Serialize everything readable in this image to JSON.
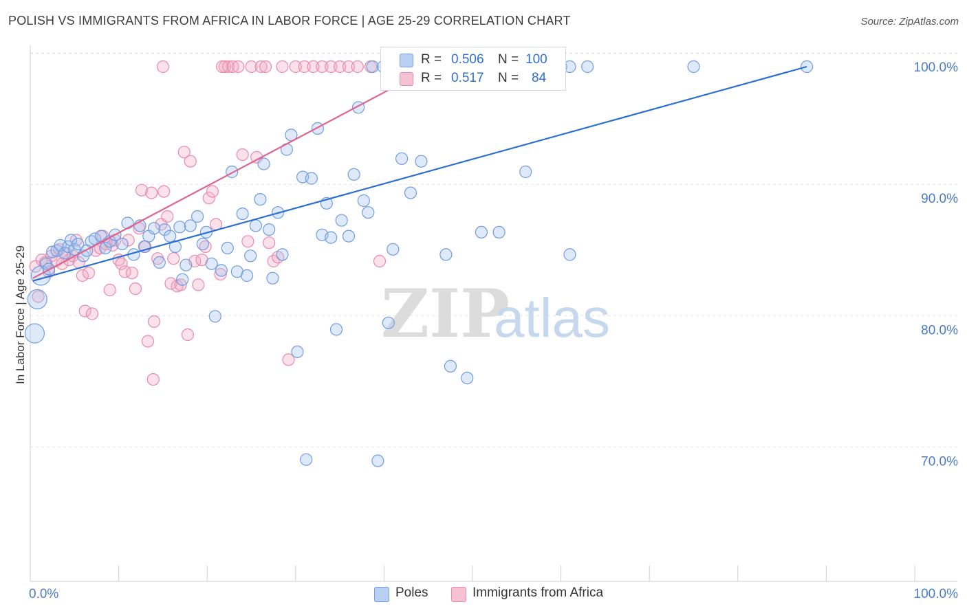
{
  "title": "POLISH VS IMMIGRANTS FROM AFRICA IN LABOR FORCE | AGE 25-29 CORRELATION CHART",
  "source": "Source: ZipAtlas.com",
  "legend": {
    "r_label": "R =",
    "n_label": "N =",
    "series": [
      {
        "name": "Poles",
        "r": "0.506",
        "n": "100",
        "color": "#6f9be0",
        "fill": "#b9d0f3"
      },
      {
        "name": "Immigrants from Africa",
        "r": "0.517",
        "n": "84",
        "color": "#e88aab",
        "fill": "#f6c2d3"
      }
    ]
  },
  "watermark": {
    "zip": "ZIP",
    "atlas": "atlas"
  },
  "chart_data": {
    "type": "scatter",
    "title": "POLISH VS IMMIGRANTS FROM AFRICA IN LABOR FORCE | AGE 25-29 CORRELATION CHART",
    "xlabel": "",
    "ylabel": "In Labor Force | Age 25-29",
    "xlim": [
      0,
      100
    ],
    "ylim": [
      60,
      101.5
    ],
    "x_tick_labels": [
      "0.0%",
      "100.0%"
    ],
    "y_ticks": [
      70,
      80,
      90,
      100
    ],
    "y_tick_labels": [
      "70.0%",
      "80.0%",
      "90.0%",
      "100.0%"
    ],
    "grid": true,
    "series": [
      {
        "name": "Poles",
        "color": "#4f86d8",
        "trend": {
          "x0": 0.3,
          "y0": 83.7,
          "x1": 87.8,
          "y1": 100.0,
          "color": "#2b6fd0"
        },
        "points": [
          [
            0.5,
            79.7
          ],
          [
            0.8,
            82.3
          ],
          [
            1.2,
            84.1
          ],
          [
            1.8,
            85.0
          ],
          [
            2.1,
            84.6
          ],
          [
            2.5,
            85.9
          ],
          [
            3.0,
            86.0
          ],
          [
            3.4,
            86.4
          ],
          [
            3.9,
            85.8
          ],
          [
            4.3,
            86.3
          ],
          [
            4.6,
            86.8
          ],
          [
            5.0,
            86.1
          ],
          [
            5.4,
            86.5
          ],
          [
            6.0,
            85.6
          ],
          [
            6.4,
            86.0
          ],
          [
            6.9,
            86.7
          ],
          [
            7.3,
            86.9
          ],
          [
            8.0,
            87.1
          ],
          [
            8.5,
            86.2
          ],
          [
            9.0,
            86.7
          ],
          [
            9.6,
            87.2
          ],
          [
            10.4,
            86.5
          ],
          [
            11.0,
            88.1
          ],
          [
            11.7,
            85.7
          ],
          [
            12.4,
            87.9
          ],
          [
            12.9,
            86.3
          ],
          [
            13.4,
            87.1
          ],
          [
            14.0,
            87.7
          ],
          [
            14.6,
            85.1
          ],
          [
            15.2,
            87.6
          ],
          [
            15.8,
            87.1
          ],
          [
            16.4,
            86.3
          ],
          [
            16.9,
            87.8
          ],
          [
            17.2,
            83.8
          ],
          [
            17.6,
            84.9
          ],
          [
            18.1,
            87.9
          ],
          [
            18.9,
            88.6
          ],
          [
            19.5,
            86.5
          ],
          [
            19.9,
            87.4
          ],
          [
            20.5,
            85.0
          ],
          [
            20.9,
            81.0
          ],
          [
            21.6,
            84.5
          ],
          [
            22.3,
            86.2
          ],
          [
            22.8,
            92.0
          ],
          [
            23.4,
            84.4
          ],
          [
            24.0,
            88.8
          ],
          [
            24.5,
            84.1
          ],
          [
            24.9,
            85.6
          ],
          [
            25.5,
            87.9
          ],
          [
            26.0,
            89.9
          ],
          [
            26.4,
            92.6
          ],
          [
            27.0,
            87.6
          ],
          [
            27.4,
            83.9
          ],
          [
            28.0,
            88.9
          ],
          [
            28.5,
            85.7
          ],
          [
            29.0,
            93.7
          ],
          [
            29.5,
            94.8
          ],
          [
            30.2,
            78.3
          ],
          [
            30.8,
            91.6
          ],
          [
            31.2,
            70.1
          ],
          [
            31.8,
            91.5
          ],
          [
            32.5,
            95.3
          ],
          [
            33.0,
            87.2
          ],
          [
            33.5,
            89.6
          ],
          [
            34.0,
            87.0
          ],
          [
            34.6,
            80.0
          ],
          [
            35.2,
            88.3
          ],
          [
            36.0,
            87.1
          ],
          [
            36.6,
            91.8
          ],
          [
            37.1,
            96.9
          ],
          [
            37.7,
            89.8
          ],
          [
            38.2,
            88.9
          ],
          [
            38.7,
            100.0
          ],
          [
            39.3,
            70.0
          ],
          [
            39.9,
            100.0
          ],
          [
            40.5,
            80.5
          ],
          [
            41.0,
            86.1
          ],
          [
            42.0,
            93.0
          ],
          [
            43.0,
            90.4
          ],
          [
            43.5,
            100.0
          ],
          [
            44.2,
            92.8
          ],
          [
            45.0,
            100.0
          ],
          [
            46.0,
            100.0
          ],
          [
            47.0,
            85.7
          ],
          [
            47.5,
            77.2
          ],
          [
            48.0,
            100.0
          ],
          [
            50.0,
            100.0
          ],
          [
            51.0,
            87.4
          ],
          [
            52.0,
            100.0
          ],
          [
            53.0,
            87.4
          ],
          [
            55.0,
            100.0
          ],
          [
            56.0,
            92.0
          ],
          [
            57.0,
            100.0
          ],
          [
            60.0,
            100.0
          ],
          [
            61.0,
            100.0
          ],
          [
            63.0,
            100.0
          ],
          [
            75.0,
            100.0
          ],
          [
            87.8,
            100.0
          ],
          [
            61.0,
            85.7
          ],
          [
            49.4,
            76.3
          ]
        ]
      },
      {
        "name": "Immigrants from Africa",
        "color": "#e77fa4",
        "trend": {
          "x0": 0.3,
          "y0": 83.9,
          "x1": 45.5,
          "y1": 100.0,
          "color": "#e0638f"
        },
        "points": [
          [
            0.6,
            84.8
          ],
          [
            0.9,
            82.5
          ],
          [
            1.3,
            85.3
          ],
          [
            1.7,
            85.1
          ],
          [
            2.1,
            84.4
          ],
          [
            2.4,
            85.6
          ],
          [
            2.9,
            85.2
          ],
          [
            3.3,
            86.1
          ],
          [
            3.6,
            85.0
          ],
          [
            4.1,
            85.8
          ],
          [
            4.4,
            85.3
          ],
          [
            4.8,
            85.6
          ],
          [
            5.2,
            86.8
          ],
          [
            5.5,
            85.1
          ],
          [
            5.9,
            84.1
          ],
          [
            6.2,
            81.4
          ],
          [
            6.6,
            84.3
          ],
          [
            7.0,
            81.2
          ],
          [
            7.4,
            86.0
          ],
          [
            7.9,
            86.2
          ],
          [
            8.2,
            87.1
          ],
          [
            8.6,
            86.5
          ],
          [
            9.0,
            83.0
          ],
          [
            9.3,
            86.4
          ],
          [
            9.6,
            86.8
          ],
          [
            10.0,
            85.3
          ],
          [
            10.3,
            85.0
          ],
          [
            10.7,
            84.4
          ],
          [
            11.1,
            86.8
          ],
          [
            11.5,
            84.3
          ],
          [
            11.9,
            83.1
          ],
          [
            12.3,
            87.7
          ],
          [
            12.6,
            90.6
          ],
          [
            13.0,
            86.3
          ],
          [
            13.3,
            79.1
          ],
          [
            13.7,
            90.4
          ],
          [
            14.0,
            80.6
          ],
          [
            14.4,
            85.4
          ],
          [
            14.8,
            88.0
          ],
          [
            15.1,
            90.5
          ],
          [
            15.5,
            88.6
          ],
          [
            15.9,
            83.5
          ],
          [
            16.2,
            85.4
          ],
          [
            16.6,
            83.3
          ],
          [
            17.0,
            83.4
          ],
          [
            17.4,
            93.5
          ],
          [
            17.8,
            79.6
          ],
          [
            18.1,
            92.8
          ],
          [
            18.6,
            85.2
          ],
          [
            19.0,
            83.4
          ],
          [
            19.4,
            85.3
          ],
          [
            19.8,
            86.3
          ],
          [
            20.2,
            90.0
          ],
          [
            20.6,
            90.5
          ],
          [
            21.0,
            88.0
          ],
          [
            21.5,
            84.2
          ],
          [
            22.0,
            100.0
          ],
          [
            22.4,
            100.0
          ],
          [
            22.9,
            100.0
          ],
          [
            23.5,
            100.0
          ],
          [
            24.0,
            93.3
          ],
          [
            24.6,
            86.7
          ],
          [
            25.0,
            100.0
          ],
          [
            25.6,
            93.1
          ],
          [
            26.1,
            100.0
          ],
          [
            26.6,
            100.0
          ],
          [
            27.0,
            86.6
          ],
          [
            27.5,
            85.2
          ],
          [
            28.0,
            85.5
          ],
          [
            28.5,
            100.0
          ],
          [
            29.2,
            77.7
          ],
          [
            30.0,
            100.0
          ],
          [
            31.0,
            100.0
          ],
          [
            32.0,
            100.0
          ],
          [
            33.0,
            100.0
          ],
          [
            34.0,
            100.0
          ],
          [
            35.0,
            100.0
          ],
          [
            36.0,
            100.0
          ],
          [
            37.0,
            100.0
          ],
          [
            38.5,
            100.0
          ],
          [
            39.5,
            85.2
          ],
          [
            13.9,
            76.2
          ],
          [
            15.0,
            100.0
          ],
          [
            21.7,
            100.0
          ]
        ]
      }
    ]
  }
}
